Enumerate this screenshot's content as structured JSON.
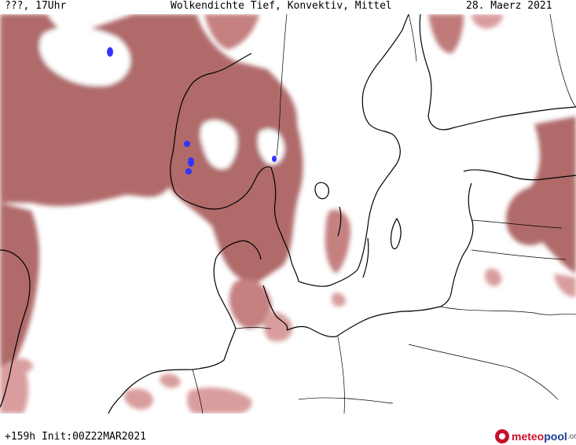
{
  "header": {
    "left": "???, 17Uhr",
    "center": "Wolkendichte  Tief, Konvektiv, Mittel",
    "right": "28. Maerz 2021"
  },
  "footer": {
    "run_info": "+159h Init:00Z22MAR2021",
    "logo_part1": "meteo",
    "logo_part2": "pool",
    "logo_part3": ".org"
  },
  "colors": {
    "cloud_fill": "#a85a5a",
    "cloud_light": "#d99d9d",
    "precip_marker": "#3333ff",
    "coastline": "#000000",
    "background": "#ffffff"
  },
  "map": {
    "region": "North Sea / Scandinavia / Baltic",
    "variable": "cloud cover low, convective, medium"
  }
}
